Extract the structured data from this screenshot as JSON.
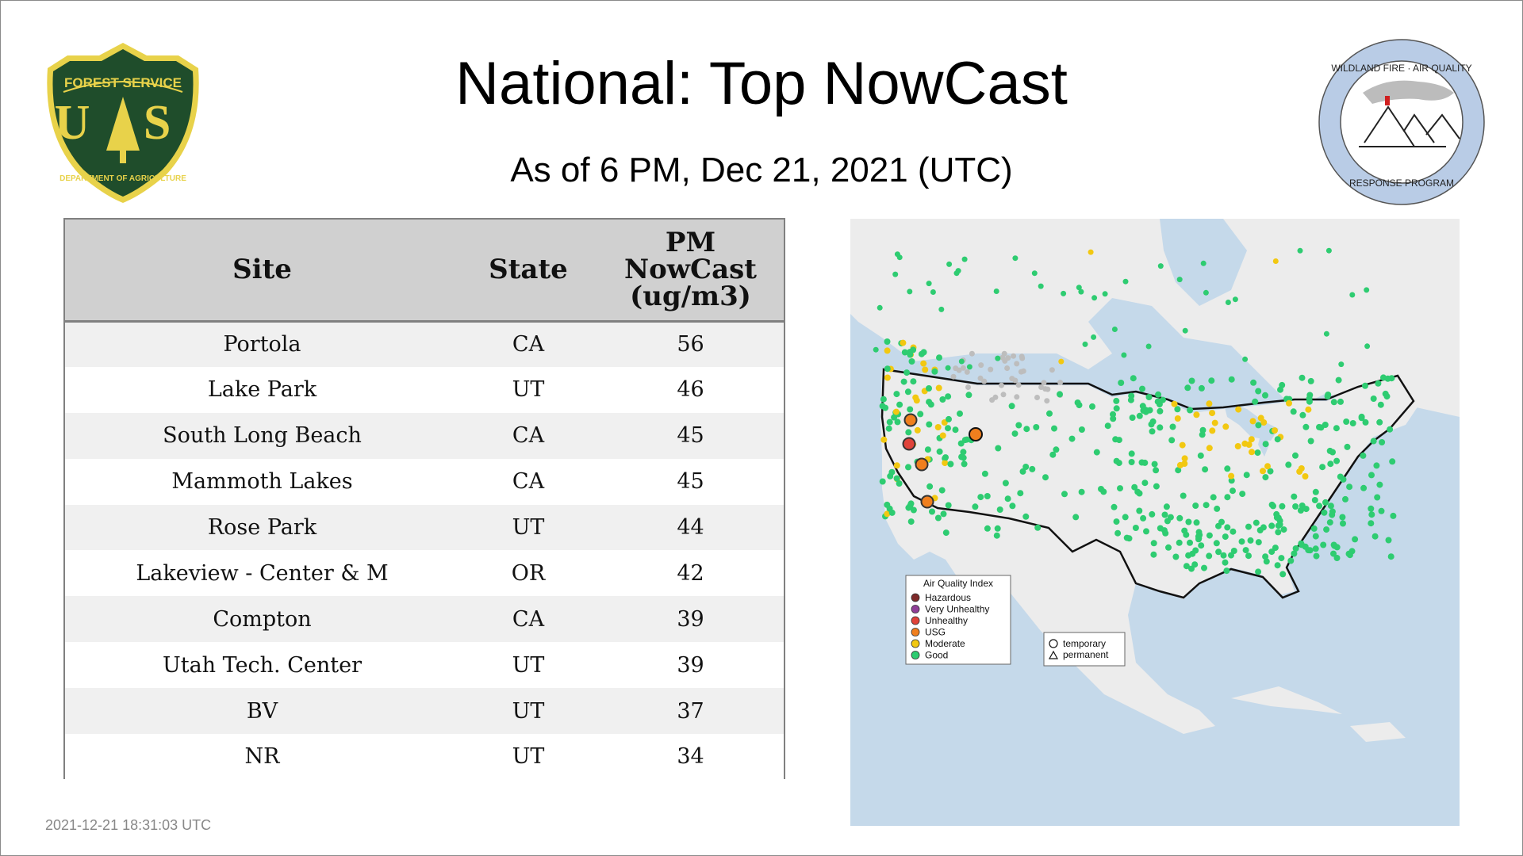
{
  "header": {
    "title": "National: Top NowCast",
    "subtitle": "As of  6 PM, Dec 21, 2021 (UTC)"
  },
  "logos": {
    "usfs": {
      "top_text": "FOREST SERVICE",
      "letters": "U S",
      "bottom_text": "DEPARTMENT OF AGRICULTURE"
    },
    "wfaq": {
      "top_text": "WILDLAND FIRE · AIR QUALITY",
      "bottom_text": "RESPONSE PROGRAM"
    }
  },
  "table": {
    "headers": {
      "site": "Site",
      "state": "State",
      "value_l1": "PM",
      "value_l2": "NowCast",
      "value_l3": "(ug/m3)"
    },
    "rows": [
      {
        "site": "Portola",
        "state": "CA",
        "value": "56"
      },
      {
        "site": "Lake Park",
        "state": "UT",
        "value": "46"
      },
      {
        "site": "South Long Beach",
        "state": "CA",
        "value": "45"
      },
      {
        "site": "Mammoth Lakes",
        "state": "CA",
        "value": "45"
      },
      {
        "site": "Rose Park",
        "state": "UT",
        "value": "44"
      },
      {
        "site": "Lakeview - Center & M",
        "state": "OR",
        "value": "42"
      },
      {
        "site": "Compton",
        "state": "CA",
        "value": "39"
      },
      {
        "site": "Utah Tech. Center",
        "state": "UT",
        "value": "39"
      },
      {
        "site": "BV",
        "state": "UT",
        "value": "37"
      },
      {
        "site": "NR",
        "state": "UT",
        "value": "34"
      }
    ]
  },
  "map": {
    "legend": {
      "title": "Air Quality Index",
      "items": [
        {
          "label": "Hazardous",
          "color": "#7e2a2a"
        },
        {
          "label": "Very Unhealthy",
          "color": "#8f3f97"
        },
        {
          "label": "Unhealthy",
          "color": "#e0433a"
        },
        {
          "label": "USG",
          "color": "#f07f1e"
        },
        {
          "label": "Moderate",
          "color": "#f2c811"
        },
        {
          "label": "Good",
          "color": "#2ecc71"
        }
      ],
      "shapes": [
        {
          "label": "temporary",
          "shape": "circle"
        },
        {
          "label": "permanent",
          "shape": "triangle"
        }
      ]
    }
  },
  "footer": {
    "timestamp": "2021-12-21 18:31:03 UTC"
  },
  "colors": {
    "water": "#c5d9ea",
    "land": "#ececec",
    "table_header": "#d0d0d0"
  }
}
